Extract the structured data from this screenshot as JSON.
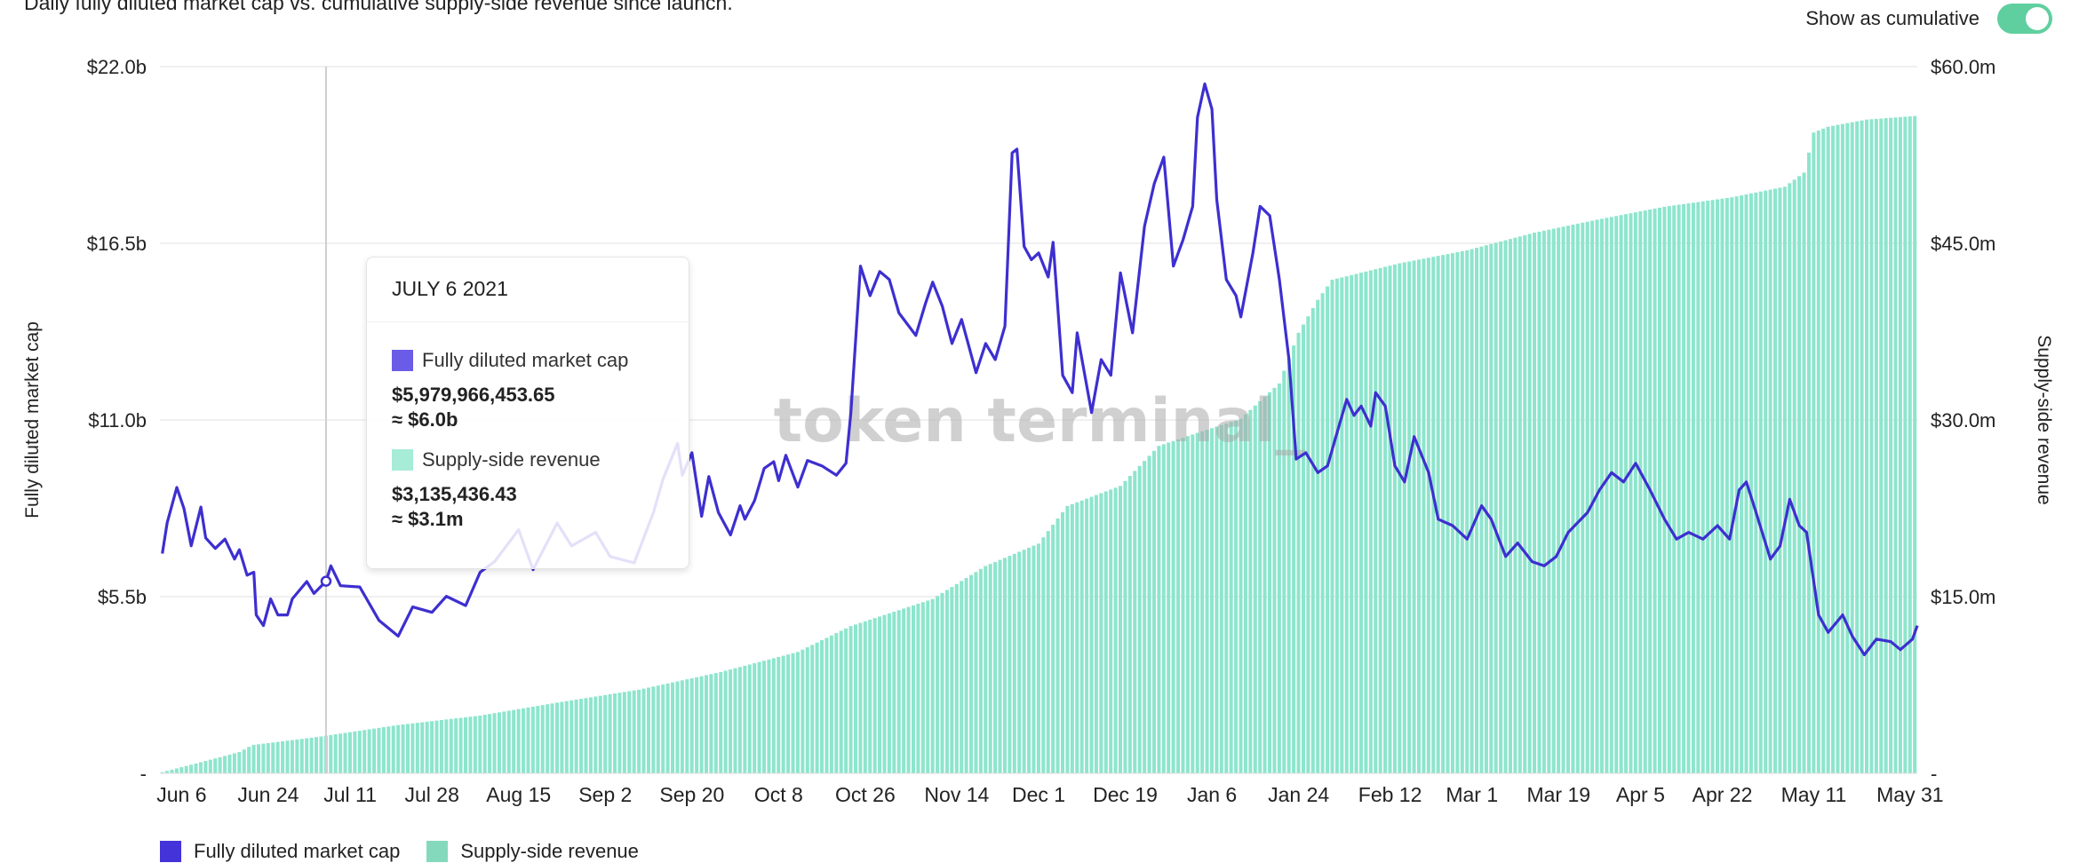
{
  "subtitle": "Daily fully diluted market cap vs. cumulative supply-side revenue since launch.",
  "toggle": {
    "label": "Show as cumulative",
    "on": true
  },
  "watermark": "token terminal_",
  "tooltip": {
    "date": "JULY 6 2021",
    "series": [
      {
        "name": "Fully diluted market cap",
        "value": "$5,979,966,453.65",
        "approx": "≈ $6.0b",
        "color": "#6b5ce8"
      },
      {
        "name": "Supply-side revenue",
        "value": "$3,135,436.43",
        "approx": "≈ $3.1m",
        "color": "#a6ecd6"
      }
    ]
  },
  "legend": [
    {
      "name": "Fully diluted market cap",
      "color": "#4333d9"
    },
    {
      "name": "Supply-side revenue",
      "color": "#84d9bd"
    }
  ],
  "chart_data": {
    "type": "bar+line",
    "x_unit": "days since Jun 6 2021",
    "xlim": [
      -4.5,
      360.5
    ],
    "hover_day": 30,
    "x_ticks": [
      {
        "day": 0,
        "label": "Jun 6"
      },
      {
        "day": 18,
        "label": "Jun 24"
      },
      {
        "day": 35,
        "label": "Jul 11"
      },
      {
        "day": 52,
        "label": "Jul 28"
      },
      {
        "day": 70,
        "label": "Aug 15"
      },
      {
        "day": 88,
        "label": "Sep 2"
      },
      {
        "day": 106,
        "label": "Sep 20"
      },
      {
        "day": 124,
        "label": "Oct 8"
      },
      {
        "day": 142,
        "label": "Oct 26"
      },
      {
        "day": 161,
        "label": "Nov 14"
      },
      {
        "day": 178,
        "label": "Dec 1"
      },
      {
        "day": 196,
        "label": "Dec 19"
      },
      {
        "day": 214,
        "label": "Jan 6"
      },
      {
        "day": 232,
        "label": "Jan 24"
      },
      {
        "day": 251,
        "label": "Feb 12"
      },
      {
        "day": 268,
        "label": "Mar 1"
      },
      {
        "day": 286,
        "label": "Mar 19"
      },
      {
        "day": 303,
        "label": "Apr 5"
      },
      {
        "day": 320,
        "label": "Apr 22"
      },
      {
        "day": 339,
        "label": "May 11"
      },
      {
        "day": 359,
        "label": "May 31"
      }
    ],
    "left_axis": {
      "label": "Fully diluted market cap",
      "unit": "$b",
      "ylim": [
        0,
        22
      ],
      "ticks": [
        {
          "v": 22,
          "label": "$22.0b"
        },
        {
          "v": 16.5,
          "label": "$16.5b"
        },
        {
          "v": 11,
          "label": "$11.0b"
        },
        {
          "v": 5.5,
          "label": "$5.5b"
        },
        {
          "v": 0,
          "label": "-"
        }
      ]
    },
    "right_axis": {
      "label": "Supply-side revenue",
      "unit": "$m",
      "ylim": [
        0,
        60
      ],
      "ticks": [
        {
          "v": 60,
          "label": "$60.0m"
        },
        {
          "v": 45,
          "label": "$45.0m"
        },
        {
          "v": 30,
          "label": "$30.0m"
        },
        {
          "v": 15,
          "label": "$15.0m"
        },
        {
          "v": 0,
          "label": "-"
        }
      ]
    },
    "grid": true,
    "series": [
      {
        "name": "Fully diluted market cap",
        "type": "line",
        "axis": "left",
        "color": "#3d2fd0",
        "points": [
          [
            -4,
            6.84
          ],
          [
            -3,
            7.79
          ],
          [
            -1,
            8.9
          ],
          [
            0.5,
            8.24
          ],
          [
            2,
            7.08
          ],
          [
            4,
            8.29
          ],
          [
            5,
            7.33
          ],
          [
            7,
            7.0
          ],
          [
            9,
            7.29
          ],
          [
            11,
            6.67
          ],
          [
            12,
            6.96
          ],
          [
            13.6,
            6.17
          ],
          [
            15,
            6.26
          ],
          [
            15.5,
            4.93
          ],
          [
            17,
            4.6
          ],
          [
            18.5,
            5.43
          ],
          [
            20,
            4.93
          ],
          [
            22,
            4.93
          ],
          [
            23,
            5.43
          ],
          [
            26,
            5.97
          ],
          [
            27.5,
            5.6
          ],
          [
            30,
            5.98
          ],
          [
            31,
            6.46
          ],
          [
            33,
            5.84
          ],
          [
            37,
            5.8
          ],
          [
            41,
            4.76
          ],
          [
            45,
            4.27
          ],
          [
            48,
            5.18
          ],
          [
            52,
            5.01
          ],
          [
            55,
            5.51
          ],
          [
            59,
            5.22
          ],
          [
            62,
            6.26
          ],
          [
            65,
            6.59
          ],
          [
            70,
            7.58
          ],
          [
            73,
            6.34
          ],
          [
            78,
            7.79
          ],
          [
            81,
            7.08
          ],
          [
            86,
            7.5
          ],
          [
            89,
            6.75
          ],
          [
            94,
            6.55
          ],
          [
            98,
            8.12
          ],
          [
            100,
            9.16
          ],
          [
            103,
            10.27
          ],
          [
            104,
            9.28
          ],
          [
            106,
            9.98
          ],
          [
            108,
            8.0
          ],
          [
            109.5,
            9.24
          ],
          [
            111.5,
            8.12
          ],
          [
            114,
            7.42
          ],
          [
            116,
            8.33
          ],
          [
            117,
            7.91
          ],
          [
            119,
            8.49
          ],
          [
            121,
            9.49
          ],
          [
            123,
            9.7
          ],
          [
            124,
            9.11
          ],
          [
            125.5,
            9.9
          ],
          [
            128,
            8.91
          ],
          [
            130,
            9.74
          ],
          [
            133,
            9.57
          ],
          [
            136,
            9.28
          ],
          [
            138,
            9.65
          ],
          [
            139,
            11.23
          ],
          [
            141,
            15.79
          ],
          [
            143,
            14.87
          ],
          [
            145,
            15.62
          ],
          [
            147,
            15.37
          ],
          [
            149,
            14.33
          ],
          [
            152.5,
            13.63
          ],
          [
            154.5,
            14.62
          ],
          [
            156,
            15.29
          ],
          [
            158,
            14.54
          ],
          [
            160,
            13.38
          ],
          [
            162,
            14.13
          ],
          [
            165,
            12.47
          ],
          [
            167,
            13.38
          ],
          [
            169,
            12.88
          ],
          [
            171,
            13.92
          ],
          [
            172.5,
            19.31
          ],
          [
            173.5,
            19.43
          ],
          [
            175,
            16.4
          ],
          [
            176.5,
            15.99
          ],
          [
            178,
            16.2
          ],
          [
            180,
            15.45
          ],
          [
            181,
            16.53
          ],
          [
            183,
            12.39
          ],
          [
            185,
            11.85
          ],
          [
            186,
            13.71
          ],
          [
            189,
            11.23
          ],
          [
            191,
            12.88
          ],
          [
            193,
            12.39
          ],
          [
            195,
            15.58
          ],
          [
            197.5,
            13.71
          ],
          [
            200,
            17.03
          ],
          [
            202,
            18.35
          ],
          [
            204,
            19.18
          ],
          [
            206,
            15.79
          ],
          [
            208,
            16.61
          ],
          [
            210,
            17.65
          ],
          [
            211,
            20.42
          ],
          [
            212.5,
            21.46
          ],
          [
            214,
            20.67
          ],
          [
            215,
            17.86
          ],
          [
            217,
            15.37
          ],
          [
            219,
            14.87
          ],
          [
            220,
            14.21
          ],
          [
            222.5,
            16.2
          ],
          [
            224,
            17.65
          ],
          [
            226,
            17.36
          ],
          [
            228,
            15.37
          ],
          [
            230,
            12.88
          ],
          [
            231.5,
            9.78
          ],
          [
            233.5,
            9.98
          ],
          [
            236,
            9.36
          ],
          [
            238,
            9.57
          ],
          [
            240,
            10.61
          ],
          [
            242,
            11.64
          ],
          [
            243.5,
            11.14
          ],
          [
            245,
            11.43
          ],
          [
            247,
            10.81
          ],
          [
            248,
            11.85
          ],
          [
            250,
            11.43
          ],
          [
            252,
            9.57
          ],
          [
            254,
            9.07
          ],
          [
            256,
            10.48
          ],
          [
            259,
            9.36
          ],
          [
            261,
            7.91
          ],
          [
            264,
            7.71
          ],
          [
            267,
            7.29
          ],
          [
            270,
            8.33
          ],
          [
            272,
            7.91
          ],
          [
            275,
            6.75
          ],
          [
            277.5,
            7.17
          ],
          [
            280.5,
            6.59
          ],
          [
            283,
            6.46
          ],
          [
            285.5,
            6.75
          ],
          [
            288,
            7.5
          ],
          [
            292,
            8.12
          ],
          [
            294.5,
            8.82
          ],
          [
            297,
            9.36
          ],
          [
            299.5,
            9.07
          ],
          [
            302,
            9.65
          ],
          [
            305,
            8.82
          ],
          [
            308,
            7.91
          ],
          [
            310.5,
            7.29
          ],
          [
            313,
            7.5
          ],
          [
            316,
            7.29
          ],
          [
            319,
            7.71
          ],
          [
            321.5,
            7.29
          ],
          [
            323.5,
            8.82
          ],
          [
            325,
            9.07
          ],
          [
            327,
            8.12
          ],
          [
            330,
            6.67
          ],
          [
            332,
            7.08
          ],
          [
            334,
            8.53
          ],
          [
            336,
            7.71
          ],
          [
            337.5,
            7.5
          ],
          [
            340,
            4.93
          ],
          [
            342,
            4.39
          ],
          [
            345,
            4.93
          ],
          [
            347,
            4.27
          ],
          [
            349.5,
            3.69
          ],
          [
            352,
            4.18
          ],
          [
            355,
            4.1
          ],
          [
            357,
            3.85
          ],
          [
            359.5,
            4.18
          ],
          [
            360.5,
            4.6
          ]
        ]
      },
      {
        "name": "Supply-side revenue",
        "type": "bar",
        "axis": "right",
        "cumulative": true,
        "color": "#8de5cc",
        "points": [
          [
            -4,
            0.1
          ],
          [
            3.6,
            0.9
          ],
          [
            12,
            1.8
          ],
          [
            14.7,
            2.4
          ],
          [
            28.5,
            3.1
          ],
          [
            45,
            4.1
          ],
          [
            62,
            4.9
          ],
          [
            78,
            6.0
          ],
          [
            95,
            7.1
          ],
          [
            112,
            8.6
          ],
          [
            128,
            10.3
          ],
          [
            139,
            12.5
          ],
          [
            156,
            14.8
          ],
          [
            167,
            17.6
          ],
          [
            178,
            19.5
          ],
          [
            184,
            22.7
          ],
          [
            195,
            24.4
          ],
          [
            203,
            27.8
          ],
          [
            211,
            28.9
          ],
          [
            220,
            30.1
          ],
          [
            228,
            33.1
          ],
          [
            232,
            37.4
          ],
          [
            236,
            40.2
          ],
          [
            239,
            41.9
          ],
          [
            253,
            43.3
          ],
          [
            267,
            44.4
          ],
          [
            281,
            45.9
          ],
          [
            294,
            47.0
          ],
          [
            308,
            48.1
          ],
          [
            322,
            48.9
          ],
          [
            333,
            49.8
          ],
          [
            337,
            51.0
          ],
          [
            339,
            54.4
          ],
          [
            342,
            54.9
          ],
          [
            350,
            55.5
          ],
          [
            360,
            55.8
          ]
        ]
      }
    ]
  }
}
